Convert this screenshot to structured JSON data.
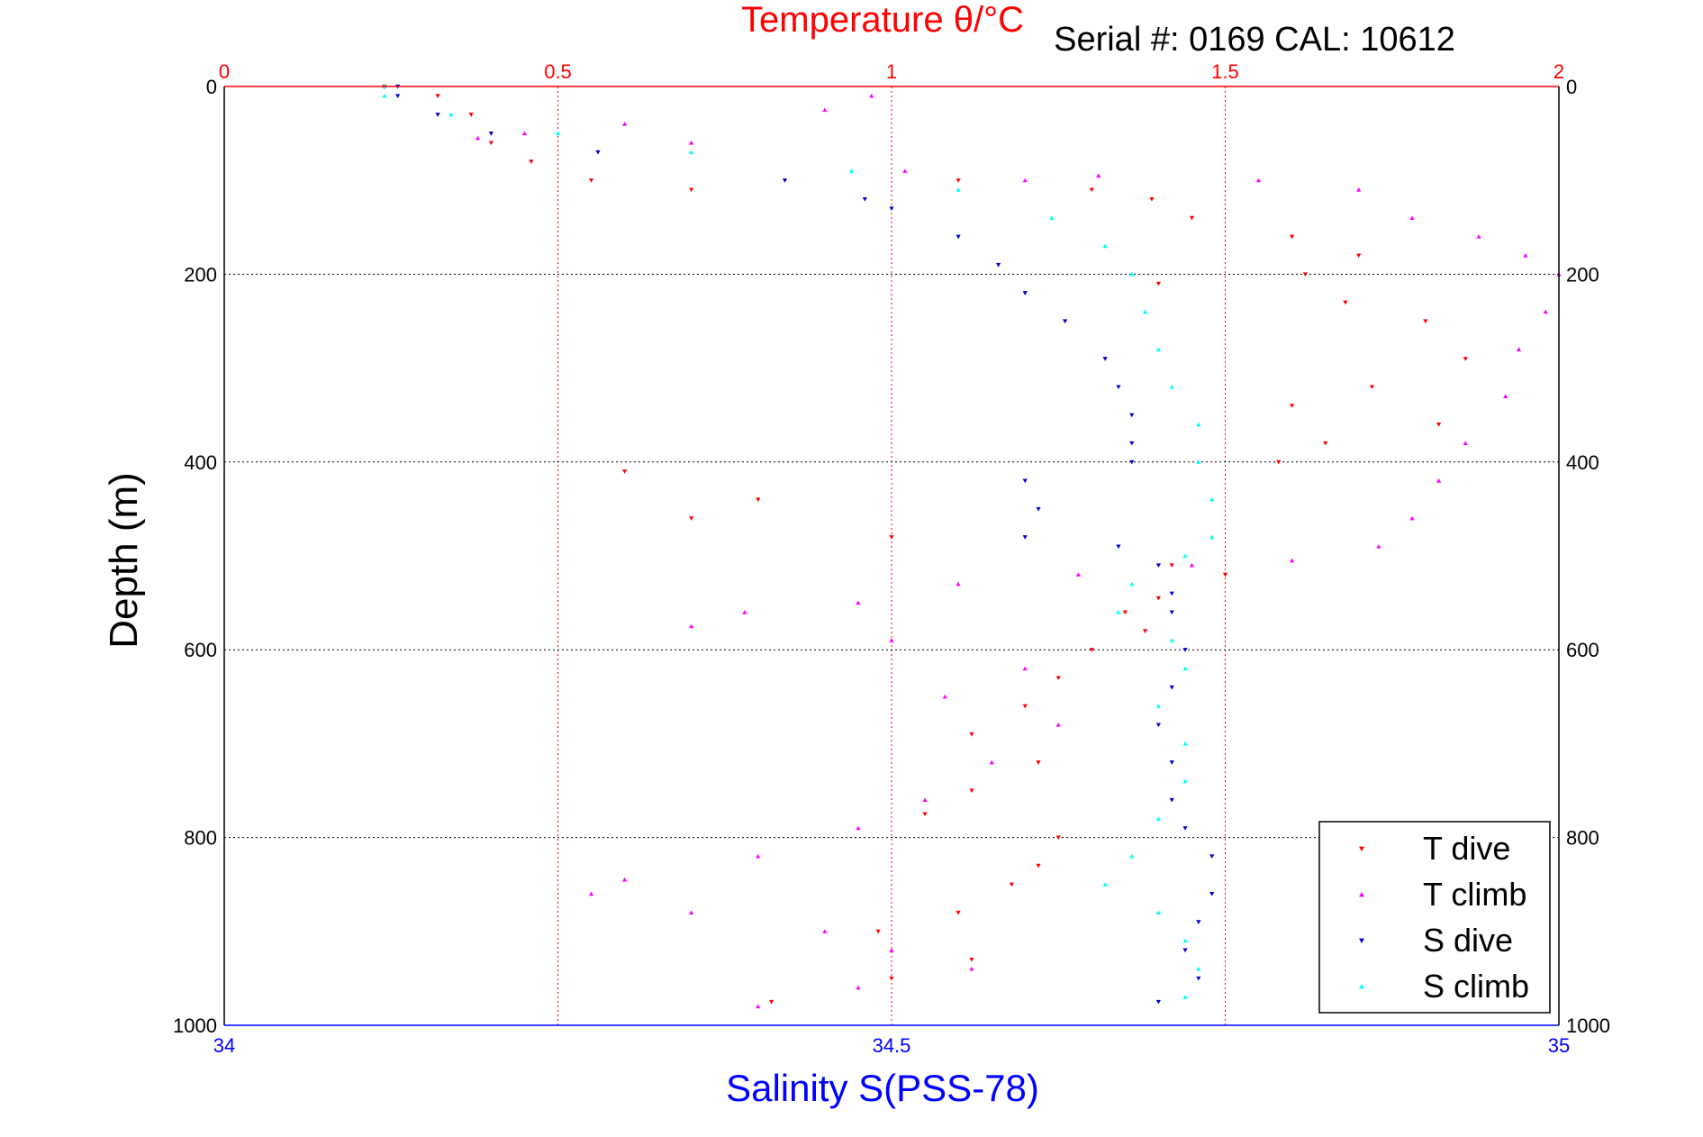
{
  "chart_data": {
    "type": "scatter",
    "title": "Temperature θ/°C",
    "subtitle": "Serial #: 0169 CAL: 10612",
    "ylabel": "Depth (m)",
    "xlabel": "Salinity S(PSS-78)",
    "top_axis": {
      "label": "Temperature θ/°C",
      "lim": [
        0,
        2
      ],
      "ticks": [
        "0",
        "0.5",
        "1",
        "1.5",
        "2"
      ]
    },
    "bottom_axis": {
      "label": "Salinity S(PSS-78)",
      "lim": [
        34,
        35
      ],
      "ticks": [
        "34",
        "34.5",
        "35"
      ]
    },
    "y_axis": {
      "label": "Depth (m)",
      "lim": [
        0,
        1000
      ],
      "reversed": true,
      "ticks": [
        "0",
        "200",
        "400",
        "600",
        "800",
        "1000"
      ]
    },
    "grid": true,
    "legend_position": "bottom-right",
    "colors": {
      "temperature_axis": "#ff0000",
      "salinity_axis": "#0000ff",
      "t_dive": "#ff0000",
      "t_climb": "#ff00ff",
      "s_dive": "#0000cc",
      "s_climb": "#00ffff"
    },
    "series": [
      {
        "name": "T dive",
        "axis": "temperature",
        "marker": "triangle-down",
        "points": [
          [
            0.24,
            0
          ],
          [
            0.32,
            10
          ],
          [
            0.37,
            30
          ],
          [
            0.4,
            60
          ],
          [
            0.46,
            80
          ],
          [
            0.55,
            100
          ],
          [
            0.7,
            110
          ],
          [
            1.1,
            100
          ],
          [
            1.3,
            110
          ],
          [
            1.39,
            120
          ],
          [
            1.45,
            140
          ],
          [
            1.6,
            160
          ],
          [
            1.7,
            180
          ],
          [
            1.62,
            200
          ],
          [
            1.4,
            210
          ],
          [
            1.68,
            230
          ],
          [
            1.8,
            250
          ],
          [
            1.86,
            290
          ],
          [
            1.72,
            320
          ],
          [
            1.6,
            340
          ],
          [
            1.82,
            360
          ],
          [
            1.65,
            380
          ],
          [
            1.58,
            400
          ],
          [
            0.6,
            410
          ],
          [
            0.8,
            440
          ],
          [
            0.7,
            460
          ],
          [
            1.0,
            480
          ],
          [
            1.42,
            510
          ],
          [
            1.5,
            520
          ],
          [
            1.4,
            545
          ],
          [
            1.35,
            560
          ],
          [
            1.38,
            580
          ],
          [
            1.3,
            600
          ],
          [
            1.25,
            630
          ],
          [
            1.2,
            660
          ],
          [
            1.12,
            690
          ],
          [
            1.22,
            720
          ],
          [
            1.12,
            750
          ],
          [
            1.05,
            775
          ],
          [
            1.25,
            800
          ],
          [
            1.22,
            830
          ],
          [
            1.18,
            850
          ],
          [
            1.1,
            880
          ],
          [
            0.98,
            900
          ],
          [
            1.12,
            930
          ],
          [
            1.0,
            950
          ],
          [
            0.82,
            975
          ]
        ]
      },
      {
        "name": "T climb",
        "axis": "temperature",
        "marker": "triangle-up",
        "points": [
          [
            0.24,
            0
          ],
          [
            0.97,
            10
          ],
          [
            0.9,
            25
          ],
          [
            0.6,
            40
          ],
          [
            0.45,
            50
          ],
          [
            0.38,
            55
          ],
          [
            0.7,
            60
          ],
          [
            1.02,
            90
          ],
          [
            1.2,
            100
          ],
          [
            1.31,
            95
          ],
          [
            1.55,
            100
          ],
          [
            1.7,
            110
          ],
          [
            1.78,
            140
          ],
          [
            1.88,
            160
          ],
          [
            1.95,
            180
          ],
          [
            2.0,
            200
          ],
          [
            1.98,
            240
          ],
          [
            1.94,
            280
          ],
          [
            1.92,
            330
          ],
          [
            1.86,
            380
          ],
          [
            1.82,
            420
          ],
          [
            1.78,
            460
          ],
          [
            1.73,
            490
          ],
          [
            1.6,
            505
          ],
          [
            1.45,
            510
          ],
          [
            1.28,
            520
          ],
          [
            1.1,
            530
          ],
          [
            0.95,
            550
          ],
          [
            0.78,
            560
          ],
          [
            0.7,
            575
          ],
          [
            1.0,
            590
          ],
          [
            1.2,
            620
          ],
          [
            1.08,
            650
          ],
          [
            1.25,
            680
          ],
          [
            1.15,
            720
          ],
          [
            1.05,
            760
          ],
          [
            0.95,
            790
          ],
          [
            0.8,
            820
          ],
          [
            0.6,
            845
          ],
          [
            0.55,
            860
          ],
          [
            0.7,
            880
          ],
          [
            0.9,
            900
          ],
          [
            1.0,
            920
          ],
          [
            1.12,
            940
          ],
          [
            0.95,
            960
          ],
          [
            0.8,
            980
          ]
        ]
      },
      {
        "name": "S dive",
        "axis": "salinity",
        "marker": "triangle-down",
        "points": [
          [
            34.13,
            0
          ],
          [
            34.13,
            10
          ],
          [
            34.16,
            30
          ],
          [
            34.2,
            50
          ],
          [
            34.28,
            70
          ],
          [
            34.42,
            100
          ],
          [
            34.48,
            120
          ],
          [
            34.5,
            130
          ],
          [
            34.55,
            160
          ],
          [
            34.58,
            190
          ],
          [
            34.6,
            220
          ],
          [
            34.63,
            250
          ],
          [
            34.66,
            290
          ],
          [
            34.67,
            320
          ],
          [
            34.68,
            350
          ],
          [
            34.68,
            380
          ],
          [
            34.68,
            400
          ],
          [
            34.6,
            420
          ],
          [
            34.61,
            450
          ],
          [
            34.6,
            480
          ],
          [
            34.67,
            490
          ],
          [
            34.7,
            510
          ],
          [
            34.71,
            540
          ],
          [
            34.71,
            560
          ],
          [
            34.72,
            600
          ],
          [
            34.71,
            640
          ],
          [
            34.7,
            680
          ],
          [
            34.71,
            720
          ],
          [
            34.71,
            760
          ],
          [
            34.72,
            790
          ],
          [
            34.74,
            820
          ],
          [
            34.74,
            860
          ],
          [
            34.73,
            890
          ],
          [
            34.72,
            920
          ],
          [
            34.73,
            950
          ],
          [
            34.7,
            975
          ]
        ]
      },
      {
        "name": "S climb",
        "axis": "salinity",
        "marker": "triangle-up",
        "points": [
          [
            34.12,
            0
          ],
          [
            34.12,
            10
          ],
          [
            34.17,
            30
          ],
          [
            34.25,
            50
          ],
          [
            34.35,
            70
          ],
          [
            34.47,
            90
          ],
          [
            34.55,
            110
          ],
          [
            34.62,
            140
          ],
          [
            34.66,
            170
          ],
          [
            34.68,
            200
          ],
          [
            34.69,
            240
          ],
          [
            34.7,
            280
          ],
          [
            34.71,
            320
          ],
          [
            34.73,
            360
          ],
          [
            34.73,
            400
          ],
          [
            34.74,
            440
          ],
          [
            34.74,
            480
          ],
          [
            34.72,
            500
          ],
          [
            34.68,
            530
          ],
          [
            34.67,
            560
          ],
          [
            34.71,
            590
          ],
          [
            34.72,
            620
          ],
          [
            34.7,
            660
          ],
          [
            34.72,
            700
          ],
          [
            34.72,
            740
          ],
          [
            34.7,
            780
          ],
          [
            34.68,
            820
          ],
          [
            34.66,
            850
          ],
          [
            34.7,
            880
          ],
          [
            34.72,
            910
          ],
          [
            34.73,
            940
          ],
          [
            34.72,
            970
          ]
        ]
      }
    ]
  }
}
